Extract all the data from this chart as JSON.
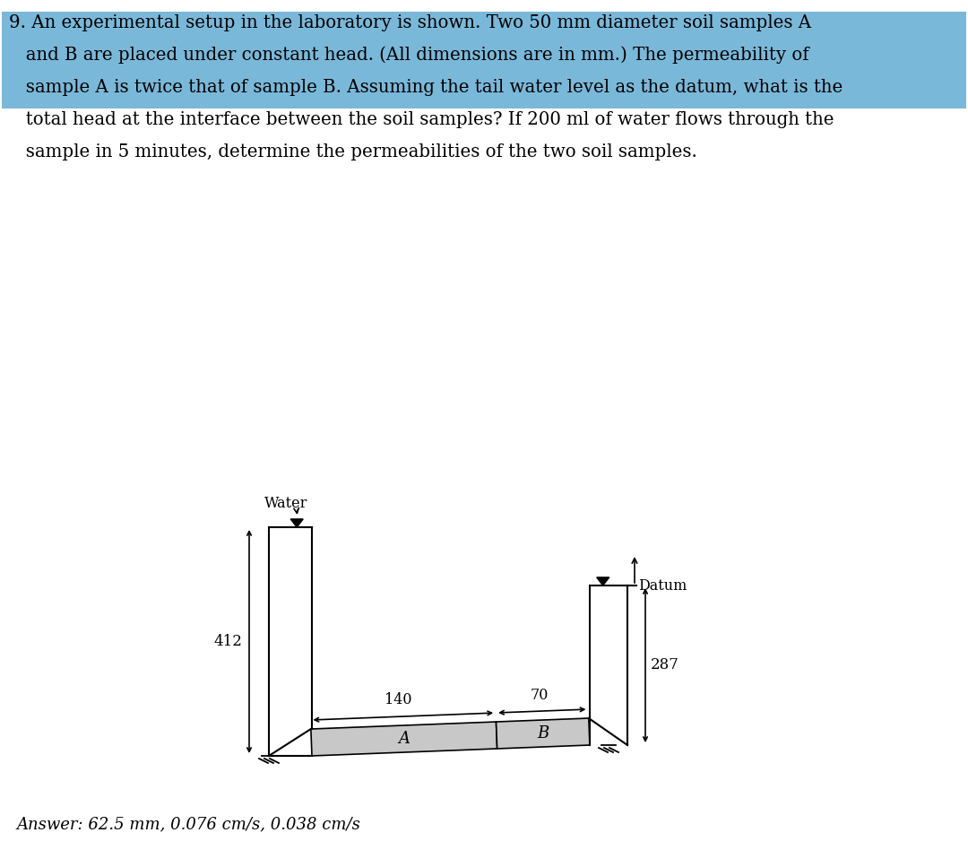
{
  "line1": "9. An experimental setup in the laboratory is shown. Two 50 mm diameter soil samples A",
  "line2": "   and B are placed under constant head. (All dimensions are in mm.) The permeability of",
  "line3": "   sample A is twice that of sample B. Assuming the tail water level as the datum, what is the",
  "line4": "   total head at the interface between the soil samples? If 200 ml of water flows through the",
  "line5": "   sample in 5 minutes, determine the permeabilities of the two soil samples.",
  "answer_text": "Answer: 62.5 mm, 0.076 cm/s, 0.038 cm/s",
  "highlight_color": "#7ab8d9",
  "bg_color": "#ffffff",
  "text_color": "#000000",
  "dim_412": "412",
  "dim_140": "140",
  "dim_70": "70",
  "dim_287": "287",
  "label_A": "A",
  "label_B": "B",
  "label_Water": "Water",
  "label_Datum": "Datum",
  "sample_fill": "#c8c8c8",
  "diagram_line_color": "#000000"
}
